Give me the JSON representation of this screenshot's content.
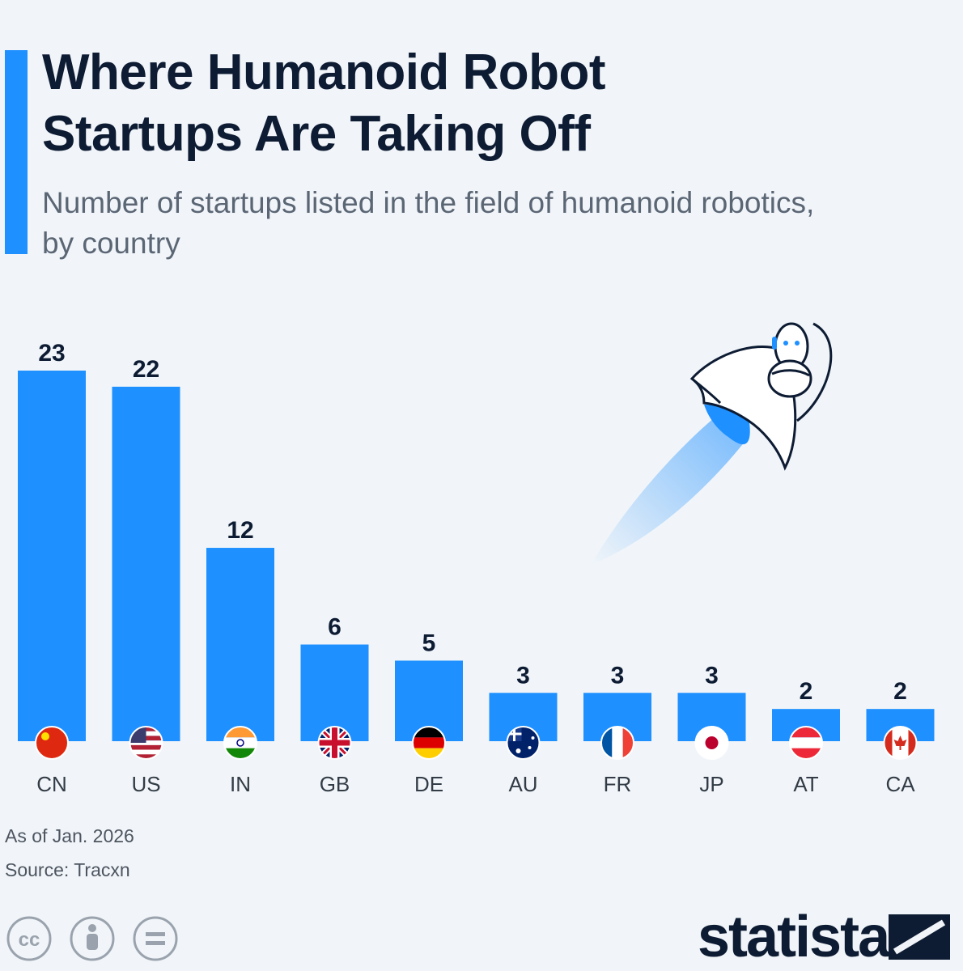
{
  "title": "Where Humanoid Robot\nStartups Are Taking Off",
  "subtitle": "Number of startups listed in the field of humanoid robotics,\nby country",
  "footnote": {
    "as_of": "As of Jan. 2026",
    "source": "Source: Tracxn"
  },
  "brand": "statista",
  "colors": {
    "bar": "#1e90ff",
    "title": "#0d1b33",
    "accent": "#1e90ff"
  },
  "icons": {
    "license": [
      "creative-commons-icon",
      "attribution-icon",
      "no-derivatives-icon"
    ],
    "illustration": "rocket-robot-icon"
  },
  "chart_data": {
    "type": "bar",
    "categories": [
      "CN",
      "US",
      "IN",
      "GB",
      "DE",
      "AU",
      "FR",
      "JP",
      "AT",
      "CA"
    ],
    "values": [
      23,
      22,
      12,
      6,
      5,
      3,
      3,
      3,
      2,
      2
    ],
    "title": "Where Humanoid Robot Startups Are Taking Off",
    "subtitle": "Number of startups listed in the field of humanoid robotics, by country",
    "xlabel": "",
    "ylabel": "",
    "ylim": [
      0,
      23
    ],
    "grid": false,
    "legend": "none",
    "data_labels": true,
    "flags": [
      "china-flag-icon",
      "usa-flag-icon",
      "india-flag-icon",
      "uk-flag-icon",
      "germany-flag-icon",
      "australia-flag-icon",
      "france-flag-icon",
      "japan-flag-icon",
      "austria-flag-icon",
      "canada-flag-icon"
    ]
  }
}
